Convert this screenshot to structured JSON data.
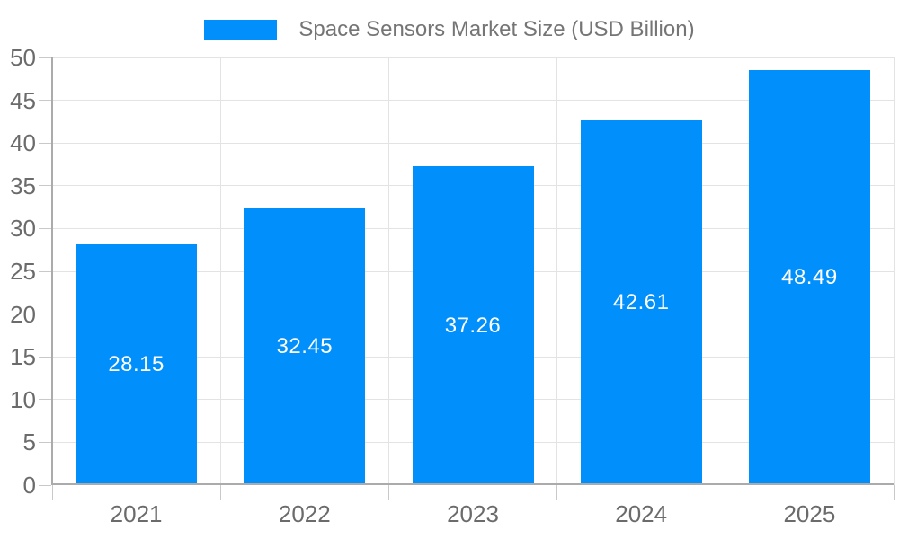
{
  "chart_data": {
    "type": "bar",
    "title": "Space Sensors Market Size (USD Billion)",
    "categories": [
      "2021",
      "2022",
      "2023",
      "2024",
      "2025"
    ],
    "values": [
      28.15,
      32.45,
      37.26,
      42.61,
      48.49
    ],
    "xlabel": "",
    "ylabel": "",
    "ylim": [
      0,
      50
    ],
    "ytick_step": 5,
    "yticks": [
      0,
      5,
      10,
      15,
      20,
      25,
      30,
      35,
      40,
      45,
      50
    ],
    "grid": true,
    "legend_position": "top-center",
    "value_labels": "inside-center",
    "colors": {
      "bar": "#008FFB",
      "value_label_text": "#FFFFFF",
      "legend_text": "#757575",
      "axis_text": "#6B6B6B",
      "gridline": "#E3E3E3",
      "axis_line": "#ABABAB",
      "tick_line": "#C9C9C9",
      "background": "#FFFFFF"
    }
  }
}
